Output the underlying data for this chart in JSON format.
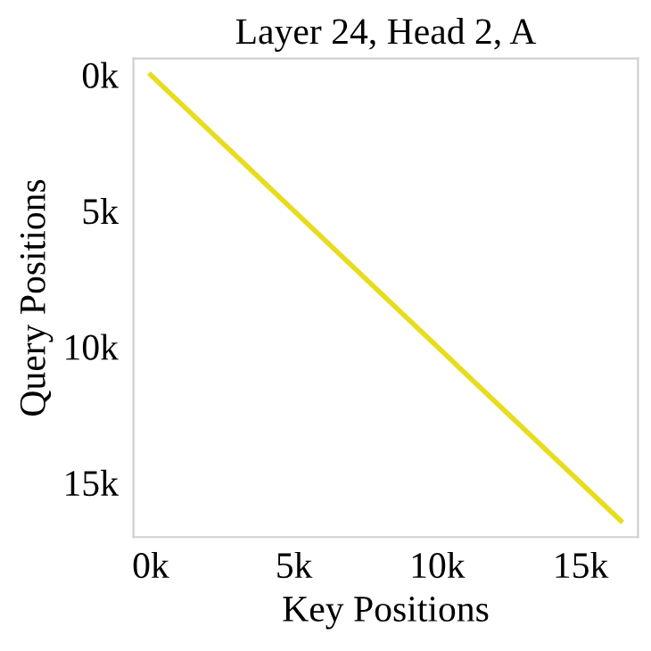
{
  "chart_data": {
    "type": "line",
    "title": "Layer 24, Head 2, A",
    "xlabel": "Key Positions",
    "ylabel": "Query Positions",
    "x": [
      0,
      16400
    ],
    "series": [
      {
        "color": "#e8dc1e",
        "values": [
          0,
          16400
        ]
      }
    ],
    "xlim": [
      -600,
      17000
    ],
    "ylim": [
      17000,
      -600
    ],
    "xticks": [
      {
        "value": 0,
        "label": "0k"
      },
      {
        "value": 5000,
        "label": "5k"
      },
      {
        "value": 10000,
        "label": "10k"
      },
      {
        "value": 15000,
        "label": "15k"
      }
    ],
    "yticks": [
      {
        "value": 0,
        "label": "0k"
      },
      {
        "value": 5000,
        "label": "5k"
      },
      {
        "value": 10000,
        "label": "10k"
      },
      {
        "value": 15000,
        "label": "15k"
      }
    ],
    "grid": false,
    "legend": false
  }
}
